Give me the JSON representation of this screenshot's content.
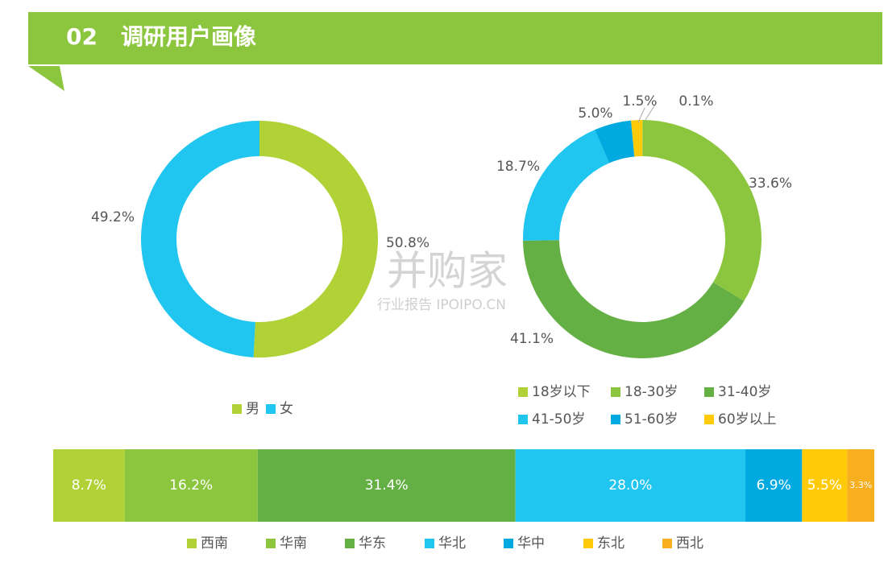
{
  "header": {
    "number": "02",
    "title": "调研用户画像"
  },
  "watermark": {
    "logo": "并购家",
    "text": "行业报告 IPOIPO.CN"
  },
  "chart_data": [
    {
      "type": "pie",
      "categories": [
        "男",
        "女"
      ],
      "values": [
        50.8,
        49.2
      ],
      "value_labels": [
        "50.8%",
        "49.2%"
      ],
      "colors": [
        "#b0d236",
        "#20c5f0"
      ]
    },
    {
      "type": "pie",
      "categories": [
        "18岁以下",
        "18-30岁",
        "31-40岁",
        "41-50岁",
        "51-60岁",
        "60岁以上"
      ],
      "values": [
        0.1,
        33.6,
        41.1,
        18.7,
        5.0,
        1.5
      ],
      "value_labels": [
        "0.1%",
        "33.6%",
        "41.1%",
        "18.7%",
        "5.0%",
        "1.5%"
      ],
      "colors": [
        "#b0d236",
        "#8cc63f",
        "#65b045",
        "#20c5f0",
        "#00a9e0",
        "#ffca08"
      ]
    },
    {
      "type": "stacked_bar",
      "categories": [
        "西南",
        "华南",
        "华东",
        "华北",
        "华中",
        "东北",
        "西北"
      ],
      "values": [
        8.7,
        16.2,
        31.4,
        28.0,
        6.9,
        5.5,
        3.3
      ],
      "value_labels": [
        "8.7%",
        "16.2%",
        "31.4%",
        "28.0%",
        "6.9%",
        "5.5%",
        "3.3%"
      ],
      "colors": [
        "#b0d236",
        "#8cc63f",
        "#65b045",
        "#20c5f0",
        "#00a9e0",
        "#ffca08",
        "#f7ae1f"
      ]
    }
  ]
}
